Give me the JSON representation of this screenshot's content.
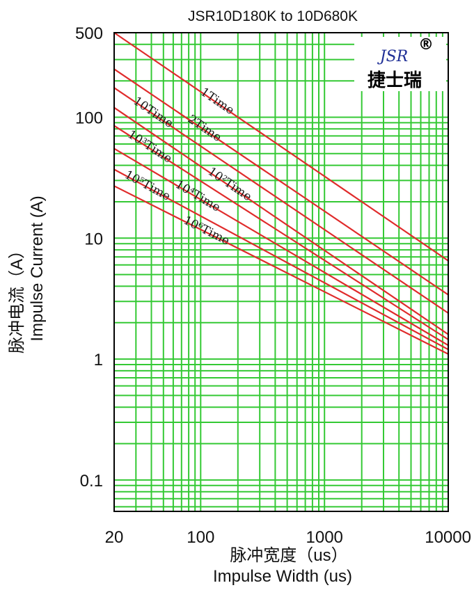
{
  "chart_data": {
    "type": "line",
    "title": "JSR10D180K to 10D680K",
    "xlabel": "Impulse Width (us)",
    "xlabel_cn": "脉冲宽度（us）",
    "ylabel": "Impulse Current (A)",
    "ylabel_cn": "脉冲电流（A）",
    "xscale": "log",
    "yscale": "log",
    "xlim": [
      20,
      10000
    ],
    "ylim": [
      0.055,
      500
    ],
    "xticks": [
      20,
      100,
      1000,
      10000
    ],
    "xtick_labels": [
      "20",
      "100",
      "1000",
      "10000"
    ],
    "yticks": [
      500,
      100,
      10,
      1,
      0.1
    ],
    "ytick_labels": [
      "500",
      "100",
      "10",
      "1",
      "0.1"
    ],
    "grid": true,
    "series": [
      {
        "name": "1Time",
        "x": [
          20,
          10000
        ],
        "y": [
          500,
          6.5
        ]
      },
      {
        "name": "2Time",
        "x": [
          20,
          10000
        ],
        "y": [
          250,
          3.4
        ]
      },
      {
        "name": "10Time",
        "x": [
          20,
          10000
        ],
        "y": [
          175,
          2.4
        ]
      },
      {
        "name": "10²Time",
        "x": [
          20,
          10000
        ],
        "y": [
          120,
          1.6
        ]
      },
      {
        "name": "10³Time",
        "x": [
          20,
          10000
        ],
        "y": [
          85,
          1.45
        ]
      },
      {
        "name": "10⁴Time",
        "x": [
          20,
          10000
        ],
        "y": [
          55,
          1.3
        ]
      },
      {
        "name": "10⁵Time",
        "x": [
          20,
          10000
        ],
        "y": [
          37,
          1.2
        ]
      },
      {
        "name": "10⁶Time",
        "x": [
          20,
          10000
        ],
        "y": [
          27,
          1.1
        ]
      }
    ]
  },
  "logo": {
    "brand": "JSR",
    "mark": "®",
    "name": "捷士瑞"
  },
  "colors": {
    "grid": "#34c934",
    "curve": "#e02b2b",
    "axes": "#000000",
    "logo_brand": "#1f2f96"
  }
}
